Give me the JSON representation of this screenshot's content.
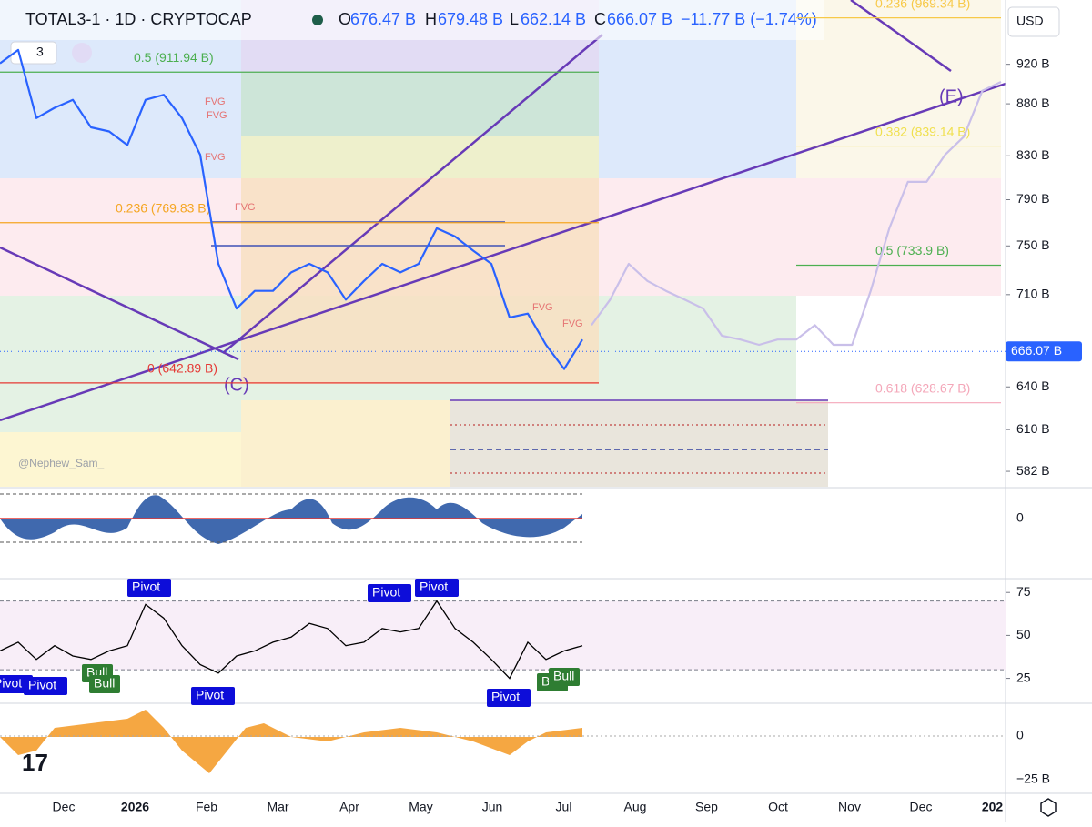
{
  "header": {
    "symbol": "TOTAL3-1 · 1D · CRYPTOCAP",
    "open_label": "O",
    "open": "676.47 B",
    "high_label": "H",
    "high": "679.48 B",
    "low_label": "L",
    "low": "662.14 B",
    "close_label": "C",
    "close": "666.07 B",
    "change": "−11.77 B (−1.74%)",
    "indicator_count": "3",
    "currency": "USD"
  },
  "chart_data": [
    {
      "type": "line",
      "log_scale": true,
      "ylim": [
        572,
        989
      ],
      "yticks": [
        {
          "value": 920,
          "label": "920 B"
        },
        {
          "value": 880,
          "label": "880 B"
        },
        {
          "value": 830,
          "label": "830 B"
        },
        {
          "value": 790,
          "label": "790 B"
        },
        {
          "value": 750,
          "label": "750 B"
        },
        {
          "value": 710,
          "label": "710 B"
        },
        {
          "value": 640,
          "label": "640 B"
        },
        {
          "value": 610,
          "label": "610 B"
        },
        {
          "value": 582,
          "label": "582 B"
        }
      ],
      "last": {
        "value": 666.07,
        "label": "666.07 B"
      },
      "series": [
        {
          "color": "#2962ff",
          "values": [
            921,
            935,
            866,
            876,
            884,
            857,
            853,
            840,
            884,
            889,
            866,
            831,
            735,
            699,
            713,
            713,
            728,
            735,
            728,
            706,
            721,
            735,
            728,
            735,
            765,
            758,
            746,
            735,
            692,
            695,
            671,
            653,
            675
          ]
        },
        {
          "color": "#c9bfe9",
          "values": [
            686,
            706,
            735,
            721,
            713,
            706,
            699,
            678,
            675,
            671,
            675,
            675,
            686,
            671,
            671,
            713,
            765,
            806,
            806,
            831,
            848,
            893,
            902
          ]
        }
      ],
      "fib_left": [
        {
          "label": "0.5 (911.94 B)",
          "value": 911.94,
          "color": "#4caf50"
        },
        {
          "label": "0.236 (769.83 B)",
          "value": 769.83,
          "color": "#f5a623"
        },
        {
          "label": "0 (642.89 B)",
          "value": 642.89,
          "color": "#e53935"
        }
      ],
      "fib_right": [
        {
          "label": "0.236 (969.34 B)",
          "value": 969.34,
          "color": "#f7c948"
        },
        {
          "label": "0.382 (839.14 B)",
          "value": 839.14,
          "color": "#f0e050"
        },
        {
          "label": "0.5 (733.9 B)",
          "value": 733.9,
          "color": "#4caf50"
        },
        {
          "label": "0.618 (628.67 B)",
          "value": 628.67,
          "color": "#f4a7b9"
        }
      ]
    },
    {
      "type": "line",
      "ylim": [
        11,
        82
      ],
      "yticks": [
        75,
        50,
        25
      ],
      "bands": [
        70,
        30
      ],
      "series": [
        {
          "color": "#000000",
          "values": [
            41,
            46,
            36,
            44,
            38,
            36,
            41,
            44,
            68,
            60,
            44,
            33,
            28,
            38,
            41,
            46,
            49,
            57,
            54,
            44,
            46,
            54,
            52,
            54,
            70,
            54,
            46,
            36,
            25,
            46,
            36,
            41,
            44
          ]
        }
      ],
      "tags": [
        "Pivot",
        "Pivot",
        "Pivot",
        "Pivot",
        "Pivot",
        "Pivot",
        "Pivot",
        "Bull",
        "Bull",
        "Bull",
        "Bull"
      ]
    }
  ],
  "annotations": {
    "wave_c": "(C)",
    "wave_e": "(E)",
    "fvg": [
      "FVG",
      "FVG",
      "FVG",
      "FVG",
      "FVG",
      "FVG"
    ],
    "watermark": "@Nephew_Sam_"
  },
  "panes": {
    "osc_ticks": [
      "0"
    ],
    "hist_ticks": [
      "0",
      "−25 B"
    ]
  },
  "time_axis": [
    "Dec",
    "2026",
    "Feb",
    "Mar",
    "Apr",
    "May",
    "Jun",
    "Jul",
    "Aug",
    "Sep",
    "Oct",
    "Nov",
    "Dec",
    "202"
  ]
}
